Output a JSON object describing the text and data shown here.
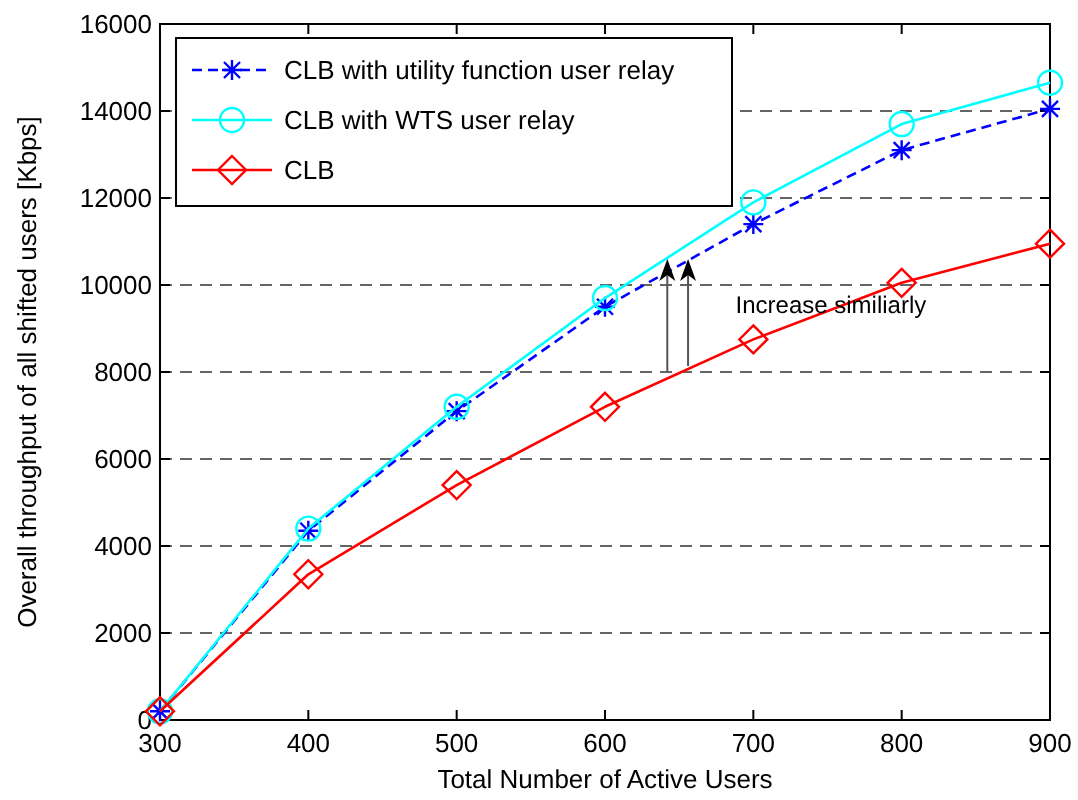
{
  "chart_data": {
    "type": "line",
    "xlabel": "Total Number of Active Users",
    "ylabel": "Overall throughput of all shifted users [Kbps]",
    "x": [
      300,
      400,
      500,
      600,
      700,
      800,
      900
    ],
    "series": [
      {
        "name": "CLB with utility function user relay",
        "color": "#0000ff",
        "marker": "cross",
        "line_style": "dashed",
        "values": [
          200,
          4350,
          7100,
          9500,
          11400,
          13100,
          14050
        ]
      },
      {
        "name": "CLB with WTS user relay",
        "color": "#00ffff",
        "marker": "circle",
        "line_style": "solid",
        "values": [
          200,
          4400,
          7200,
          9700,
          11900,
          13700,
          14650
        ]
      },
      {
        "name": "CLB",
        "color": "#ff0000",
        "marker": "diamond",
        "line_style": "solid",
        "values": [
          200,
          3350,
          5400,
          7200,
          8750,
          10050,
          10950
        ]
      }
    ],
    "annotations": [
      "Increase similiarly"
    ],
    "xlim": [
      300,
      900
    ],
    "xticks": [
      300,
      400,
      500,
      600,
      700,
      800,
      900
    ],
    "ylim": [
      0,
      16000
    ],
    "yticks": [
      0,
      2000,
      4000,
      6000,
      8000,
      10000,
      12000,
      14000,
      16000
    ],
    "grid": "y",
    "legend": "top left"
  }
}
